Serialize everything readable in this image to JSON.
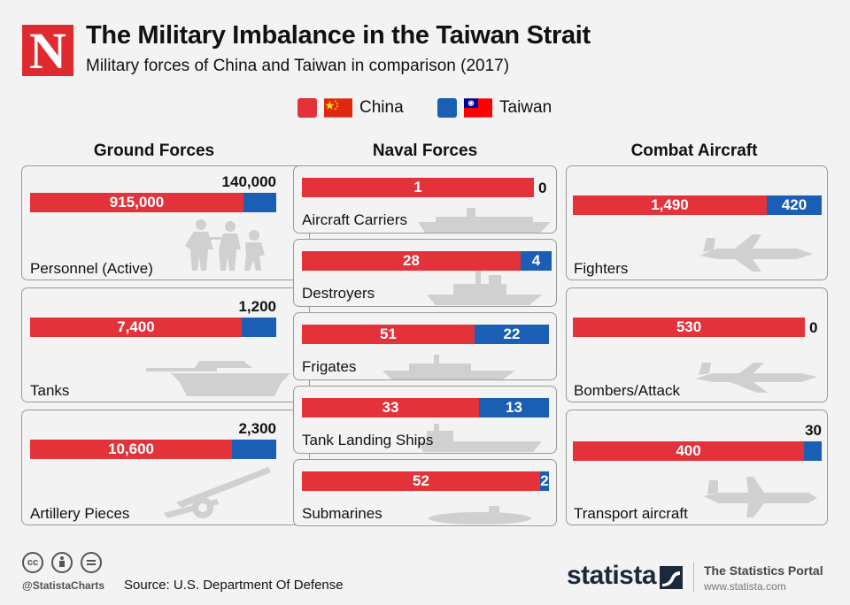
{
  "logo": "N",
  "title": "The Military Imbalance in the Taiwan Strait",
  "subtitle": "Military forces of China and Taiwan in comparison (2017)",
  "colors": {
    "china": "#e3323a",
    "taiwan": "#1a5fb4",
    "logo": "#e02a2f"
  },
  "legend": [
    {
      "label": "China",
      "flag": "china-flag-icon"
    },
    {
      "label": "Taiwan",
      "flag": "taiwan-flag-icon"
    }
  ],
  "columns": [
    {
      "title": "Ground Forces"
    },
    {
      "title": "Naval Forces"
    },
    {
      "title": "Combat Aircraft"
    }
  ],
  "chart_data": {
    "type": "bar",
    "orientation": "horizontal",
    "stacked_percent": true,
    "series_names": [
      "China",
      "Taiwan"
    ],
    "panels": [
      {
        "group": "Ground Forces",
        "label": "Personnel (Active)",
        "china": 915000,
        "taiwan": 140000,
        "china_text": "915,000",
        "taiwan_text": "140,000",
        "icon": "soldiers-icon"
      },
      {
        "group": "Ground Forces",
        "label": "Tanks",
        "china": 7400,
        "taiwan": 1200,
        "china_text": "7,400",
        "taiwan_text": "1,200",
        "icon": "tank-icon"
      },
      {
        "group": "Ground Forces",
        "label": "Artillery Pieces",
        "china": 10600,
        "taiwan": 2300,
        "china_text": "10,600",
        "taiwan_text": "2,300",
        "icon": "artillery-icon"
      },
      {
        "group": "Naval Forces",
        "label": "Aircraft Carriers",
        "china": 1,
        "taiwan": 0,
        "china_text": "1",
        "taiwan_text": "0",
        "icon": "carrier-icon"
      },
      {
        "group": "Naval Forces",
        "label": "Destroyers",
        "china": 28,
        "taiwan": 4,
        "china_text": "28",
        "taiwan_text": "4",
        "icon": "destroyer-icon"
      },
      {
        "group": "Naval Forces",
        "label": "Frigates",
        "china": 51,
        "taiwan": 22,
        "china_text": "51",
        "taiwan_text": "22",
        "icon": "frigate-icon"
      },
      {
        "group": "Naval Forces",
        "label": "Tank Landing Ships",
        "china": 33,
        "taiwan": 13,
        "china_text": "33",
        "taiwan_text": "13",
        "icon": "landing-ship-icon"
      },
      {
        "group": "Naval Forces",
        "label": "Submarines",
        "china": 52,
        "taiwan": 2,
        "china_text": "52",
        "taiwan_text": "2",
        "icon": "submarine-icon"
      },
      {
        "group": "Combat Aircraft",
        "label": "Fighters",
        "china": 1490,
        "taiwan": 420,
        "china_text": "1,490",
        "taiwan_text": "420",
        "icon": "fighter-jet-icon"
      },
      {
        "group": "Combat Aircraft",
        "label": "Bombers/Attack",
        "china": 530,
        "taiwan": 0,
        "china_text": "530",
        "taiwan_text": "0",
        "icon": "bomber-icon"
      },
      {
        "group": "Combat Aircraft",
        "label": "Transport aircraft",
        "china": 400,
        "taiwan": 30,
        "china_text": "400",
        "taiwan_text": "30",
        "icon": "transport-plane-icon"
      }
    ]
  },
  "footer": {
    "license_icons": [
      "cc-icon",
      "attribution-icon",
      "no-derivatives-icon"
    ],
    "cc_text": "cc",
    "handle": "@StatistaCharts",
    "source": "Source: U.S. Department Of Defense",
    "brand": "statista",
    "portal": "The Statistics Portal",
    "url": "www.statista.com"
  }
}
